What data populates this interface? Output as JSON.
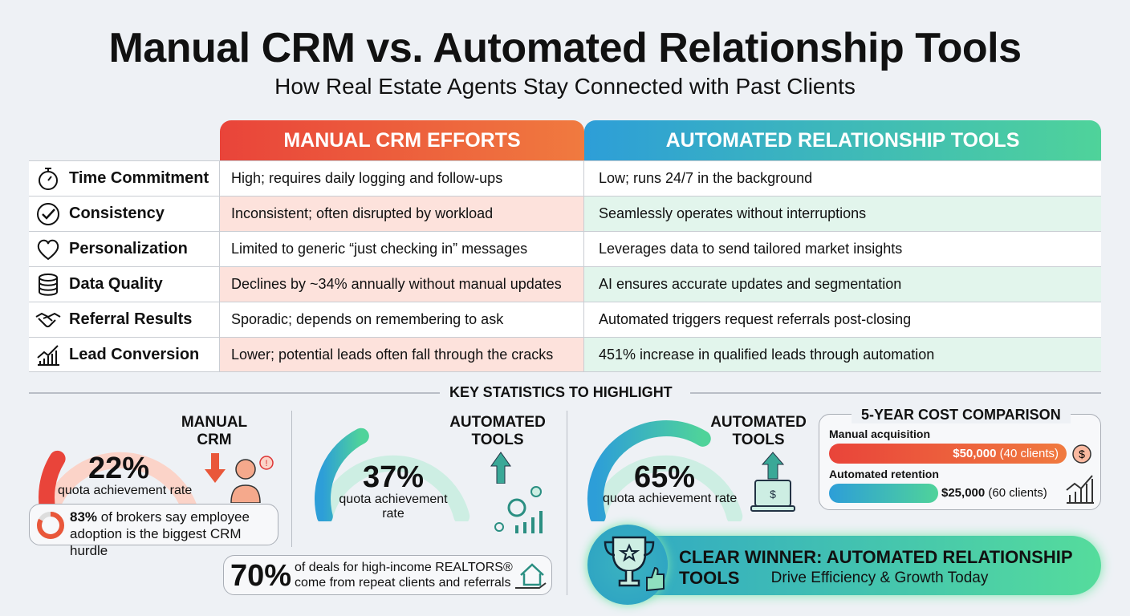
{
  "title": "Manual CRM vs. Automated Relationship Tools",
  "subtitle": "How Real Estate Agents Stay Connected with Past Clients",
  "table": {
    "headers": [
      "MANUAL CRM EFFORTS",
      "AUTOMATED RELATIONSHIP TOOLS"
    ],
    "rows": [
      {
        "label": "Time Commitment",
        "icon": "stopwatch-icon",
        "manual": "High; requires daily logging and follow-ups",
        "automated": "Low; runs 24/7 in the background"
      },
      {
        "label": "Consistency",
        "icon": "check-circle-icon",
        "manual": "Inconsistent; often disrupted by workload",
        "automated": "Seamlessly operates without interruptions"
      },
      {
        "label": "Personalization",
        "icon": "heart-icon",
        "manual": "Limited to generic “just checking in” messages",
        "automated": "Leverages data to send tailored market insights"
      },
      {
        "label": "Data Quality",
        "icon": "database-icon",
        "manual": "Declines by ~34% annually without manual updates",
        "automated": "AI ensures accurate updates and segmentation"
      },
      {
        "label": "Referral Results",
        "icon": "handshake-icon",
        "manual": "Sporadic; depends on remembering to ask",
        "automated": "Automated triggers request referrals post-closing"
      },
      {
        "label": "Lead Conversion",
        "icon": "growth-chart-icon",
        "manual": "Lower; potential leads often fall through the cracks",
        "automated": "451% increase in qualified leads through automation"
      }
    ]
  },
  "stats": {
    "heading": "KEY STATISTICS TO HIGHLIGHT",
    "gauge1": {
      "value": "22%",
      "percent": 22,
      "caption": "quota achievement rate",
      "label1": "MANUAL",
      "label2": "CRM"
    },
    "adoption": {
      "value": "83%",
      "text1": " of brokers say employee",
      "text2": "adoption is the biggest CRM hurdle",
      "percent": 83
    },
    "gauge2": {
      "value": "37%",
      "percent": 37,
      "caption1": "quota achievement",
      "caption2": "rate",
      "label1": "AUTOMATED",
      "label2": "TOOLS"
    },
    "repeat": {
      "value": "70%",
      "text1": "of deals for high-income REALTORS®",
      "text2": "come from repeat clients and referrals"
    },
    "gauge3": {
      "value": "65%",
      "percent": 65,
      "caption": "quota achievement rate",
      "label1": "AUTOMATED",
      "label2": "TOOLS"
    },
    "cost": {
      "title": "5-YEAR COST COMPARISON",
      "manual_label": "Manual acquisition",
      "manual_amount": "$50,000",
      "manual_clients": "(40 clients)",
      "auto_label": "Automated retention",
      "auto_amount": "$25,000",
      "auto_clients": "(60 clients)"
    },
    "winner": {
      "title": "CLEAR WINNER: AUTOMATED RELATIONSHIP TOOLS",
      "subtitle": "Drive Efficiency & Growth Today"
    }
  },
  "colors": {
    "manual": "#e9443a",
    "manual_light": "#fbd3c8",
    "auto_blue": "#2d9ed8",
    "auto_green": "#4fd39a",
    "auto_light": "#cdeee3"
  }
}
